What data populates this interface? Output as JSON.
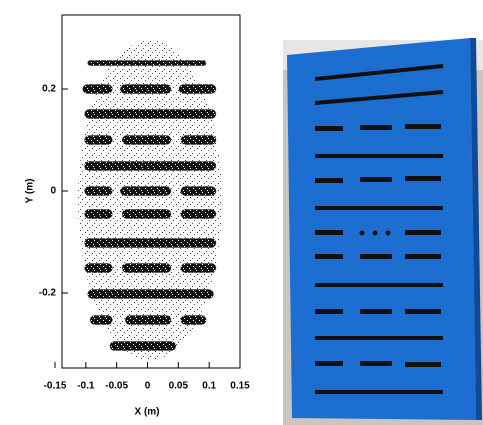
{
  "chart_data": {
    "type": "scatter",
    "xlabel": "X (m)",
    "ylabel": "Y (m)",
    "xlim": [
      -0.15,
      0.15
    ],
    "ylim": [
      -0.35,
      0.35
    ],
    "xticks": [
      -0.15,
      -0.1,
      -0.05,
      0,
      0.05,
      0.1,
      0.15
    ],
    "yticks": [
      -0.2,
      0,
      0.2
    ],
    "color": "#000000",
    "bands": [
      {
        "y": 0.251,
        "x0": -0.097,
        "x1": 0.095
      },
      {
        "y": 0.2,
        "x0": -0.105,
        "x1": -0.057
      },
      {
        "y": 0.2,
        "x0": -0.044,
        "x1": 0.038
      },
      {
        "y": 0.2,
        "x0": 0.051,
        "x1": 0.111
      },
      {
        "y": 0.151,
        "x0": -0.102,
        "x1": 0.111
      },
      {
        "y": 0.1,
        "x0": -0.102,
        "x1": -0.057
      },
      {
        "y": 0.1,
        "x0": -0.041,
        "x1": 0.038
      },
      {
        "y": 0.1,
        "x0": 0.054,
        "x1": 0.111
      },
      {
        "y": 0.049,
        "x0": -0.102,
        "x1": 0.111
      },
      {
        "y": 0,
        "x0": -0.102,
        "x1": -0.057
      },
      {
        "y": 0,
        "x0": -0.044,
        "x1": 0.038
      },
      {
        "y": 0,
        "x0": 0.054,
        "x1": 0.111
      },
      {
        "y": -0.045,
        "x0": -0.102,
        "x1": -0.057
      },
      {
        "y": -0.045,
        "x0": -0.041,
        "x1": 0.038
      },
      {
        "y": -0.045,
        "x0": 0.054,
        "x1": 0.111
      },
      {
        "y": -0.102,
        "x0": -0.102,
        "x1": 0.111
      },
      {
        "y": -0.151,
        "x0": -0.102,
        "x1": -0.057
      },
      {
        "y": -0.151,
        "x0": -0.041,
        "x1": 0.038
      },
      {
        "y": -0.151,
        "x0": 0.054,
        "x1": 0.111
      },
      {
        "y": -0.202,
        "x0": -0.097,
        "x1": 0.107
      },
      {
        "y": -0.253,
        "x0": -0.093,
        "x1": -0.057
      },
      {
        "y": -0.253,
        "x0": -0.036,
        "x1": 0.038
      },
      {
        "y": -0.253,
        "x0": 0.054,
        "x1": 0.095
      },
      {
        "y": -0.304,
        "x0": -0.061,
        "x1": 0.046
      }
    ]
  }
}
